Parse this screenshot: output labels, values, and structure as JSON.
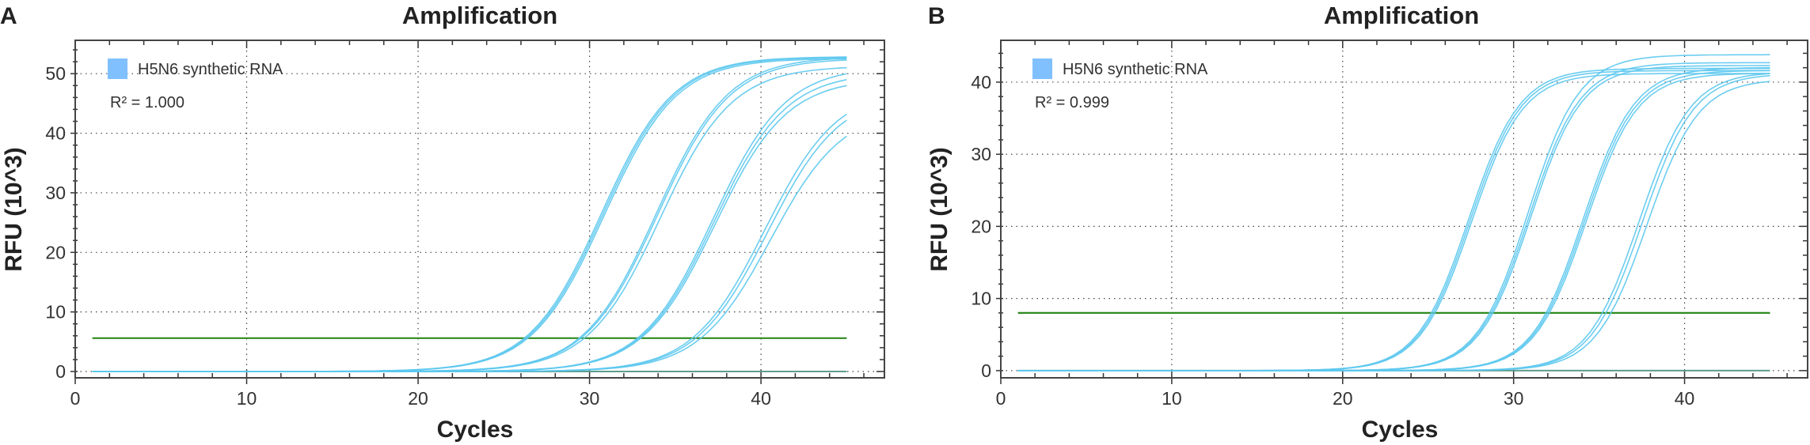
{
  "chart_data": [
    {
      "panel_label": "A",
      "type": "line",
      "title": "Amplification",
      "xlabel": "Cycles",
      "ylabel": "RFU (10^3)",
      "xlim": [
        0,
        47.2
      ],
      "ylim": [
        -1.06,
        55.6
      ],
      "xticks": [
        0,
        10,
        20,
        30,
        40
      ],
      "yticks": [
        0,
        10,
        20,
        30,
        40,
        50
      ],
      "grid": true,
      "legend": {
        "position": "top-left",
        "label": "H5N6 synthetic RNA",
        "color": "#80c0ff",
        "annotation": "R² = 1.000"
      },
      "threshold": 5.6,
      "threshold_color": "#2e8b1e",
      "curve_color": "#5cc8ee",
      "ntc_color": "#5e9c8c",
      "cycles": [
        1,
        45
      ],
      "series": [
        {
          "cq": 26.2,
          "rfu_at_45": 52.8
        },
        {
          "cq": 26.3,
          "rfu_at_45": 52.7
        },
        {
          "cq": 26.4,
          "rfu_at_45": 52.5
        },
        {
          "cq": 29.4,
          "rfu_at_45": 52.6
        },
        {
          "cq": 29.5,
          "rfu_at_45": 52.3
        },
        {
          "cq": 29.7,
          "rfu_at_45": 51.0
        },
        {
          "cq": 32.8,
          "rfu_at_45": 50.0
        },
        {
          "cq": 32.9,
          "rfu_at_45": 49.0
        },
        {
          "cq": 33.0,
          "rfu_at_45": 48.0
        },
        {
          "cq": 36.0,
          "rfu_at_45": 43.2
        },
        {
          "cq": 36.2,
          "rfu_at_45": 42.2
        },
        {
          "cq": 36.5,
          "rfu_at_45": 39.5
        }
      ]
    },
    {
      "panel_label": "B",
      "type": "line",
      "title": "Amplification",
      "xlabel": "Cycles",
      "ylabel": "RFU (10^3)",
      "xlim": [
        0,
        47.2
      ],
      "ylim": [
        -1.0,
        45.8
      ],
      "xticks": [
        0,
        10,
        20,
        30,
        40
      ],
      "yticks": [
        0,
        10,
        20,
        30,
        40
      ],
      "grid": true,
      "legend": {
        "position": "top-left",
        "label": "H5N6 synthetic RNA",
        "color": "#80c0ff",
        "annotation": "R² = 0.999"
      },
      "threshold": 8.0,
      "threshold_color": "#2e8b1e",
      "curve_color": "#5cc8ee",
      "ntc_color": "#5e9c8c",
      "cycles": [
        1,
        45
      ],
      "series": [
        {
          "cq": 25.2,
          "rfu_at_45": 41.9
        },
        {
          "cq": 25.3,
          "rfu_at_45": 41.6
        },
        {
          "cq": 25.4,
          "rfu_at_45": 41.2
        },
        {
          "cq": 28.6,
          "rfu_at_45": 43.8
        },
        {
          "cq": 28.7,
          "rfu_at_45": 42.7
        },
        {
          "cq": 28.8,
          "rfu_at_45": 42.3
        },
        {
          "cq": 31.9,
          "rfu_at_45": 42.0
        },
        {
          "cq": 32.0,
          "rfu_at_45": 41.6
        },
        {
          "cq": 32.1,
          "rfu_at_45": 41.2
        },
        {
          "cq": 35.2,
          "rfu_at_45": 41.2
        },
        {
          "cq": 35.4,
          "rfu_at_45": 40.9
        },
        {
          "cq": 35.7,
          "rfu_at_45": 40.1
        }
      ]
    }
  ]
}
